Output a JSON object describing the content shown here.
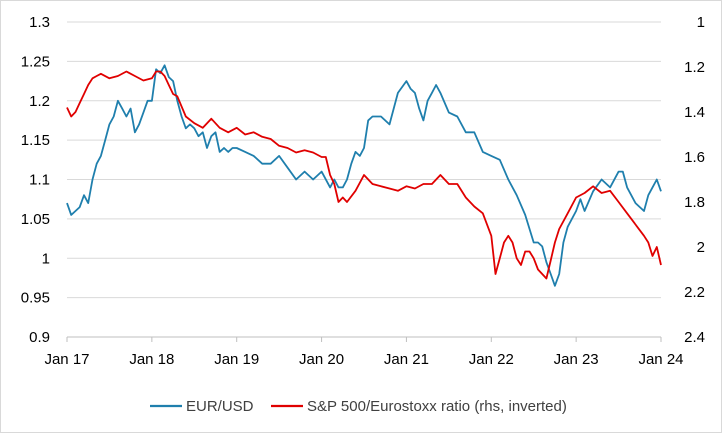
{
  "chart_data": {
    "type": "line",
    "title": "",
    "xlabel": "",
    "ylabel": "",
    "x_ticks": [
      "Jan 17",
      "Jan 18",
      "Jan 19",
      "Jan 20",
      "Jan 21",
      "Jan 22",
      "Jan 23",
      "Jan 24"
    ],
    "y_left": {
      "ylim": [
        0.9,
        1.3
      ],
      "ticks": [
        "1.3",
        "1.25",
        "1.2",
        "1.15",
        "1.1",
        "1.05",
        "1",
        "0.95",
        "0.9"
      ]
    },
    "y_right": {
      "ylim": [
        1,
        2.4
      ],
      "inverted": true,
      "ticks": [
        "1",
        "1.2",
        "1.4",
        "1.6",
        "1.8",
        "2",
        "2.2",
        "2.4"
      ]
    },
    "grid": {
      "horizontal": true,
      "vertical": false,
      "color": "#d9d9d9"
    },
    "legend_position": "bottom",
    "series": [
      {
        "name": "EUR/USD",
        "axis": "left",
        "color": "#1f7fad",
        "x": [
          2017.0,
          2017.05,
          2017.1,
          2017.15,
          2017.2,
          2017.25,
          2017.3,
          2017.35,
          2017.4,
          2017.45,
          2017.5,
          2017.55,
          2017.6,
          2017.65,
          2017.7,
          2017.75,
          2017.8,
          2017.85,
          2017.9,
          2017.95,
          2018.0,
          2018.05,
          2018.1,
          2018.15,
          2018.2,
          2018.25,
          2018.3,
          2018.35,
          2018.4,
          2018.45,
          2018.5,
          2018.55,
          2018.6,
          2018.65,
          2018.7,
          2018.75,
          2018.8,
          2018.85,
          2018.9,
          2018.95,
          2019.0,
          2019.1,
          2019.2,
          2019.3,
          2019.4,
          2019.5,
          2019.6,
          2019.7,
          2019.8,
          2019.9,
          2020.0,
          2020.1,
          2020.15,
          2020.2,
          2020.25,
          2020.3,
          2020.35,
          2020.4,
          2020.45,
          2020.5,
          2020.55,
          2020.6,
          2020.7,
          2020.8,
          2020.9,
          2021.0,
          2021.05,
          2021.1,
          2021.15,
          2021.2,
          2021.25,
          2021.3,
          2021.35,
          2021.4,
          2021.5,
          2021.6,
          2021.7,
          2021.8,
          2021.9,
          2022.0,
          2022.1,
          2022.2,
          2022.3,
          2022.4,
          2022.5,
          2022.55,
          2022.6,
          2022.65,
          2022.7,
          2022.75,
          2022.8,
          2022.85,
          2022.9,
          2023.0,
          2023.05,
          2023.1,
          2023.2,
          2023.3,
          2023.4,
          2023.5,
          2023.55,
          2023.6,
          2023.7,
          2023.8,
          2023.85,
          2023.9,
          2023.95,
          2024.0
        ],
        "values": [
          1.07,
          1.055,
          1.06,
          1.065,
          1.08,
          1.07,
          1.1,
          1.12,
          1.13,
          1.15,
          1.17,
          1.18,
          1.2,
          1.19,
          1.18,
          1.19,
          1.16,
          1.17,
          1.185,
          1.2,
          1.2,
          1.24,
          1.235,
          1.245,
          1.23,
          1.225,
          1.2,
          1.18,
          1.165,
          1.17,
          1.165,
          1.155,
          1.16,
          1.14,
          1.155,
          1.16,
          1.135,
          1.14,
          1.135,
          1.14,
          1.14,
          1.135,
          1.13,
          1.12,
          1.12,
          1.13,
          1.115,
          1.1,
          1.11,
          1.1,
          1.11,
          1.09,
          1.1,
          1.09,
          1.09,
          1.1,
          1.12,
          1.135,
          1.13,
          1.14,
          1.175,
          1.18,
          1.18,
          1.17,
          1.21,
          1.225,
          1.215,
          1.21,
          1.19,
          1.175,
          1.2,
          1.21,
          1.22,
          1.21,
          1.185,
          1.18,
          1.16,
          1.16,
          1.135,
          1.13,
          1.125,
          1.1,
          1.08,
          1.055,
          1.02,
          1.02,
          1.015,
          0.995,
          0.98,
          0.965,
          0.98,
          1.02,
          1.04,
          1.06,
          1.075,
          1.06,
          1.085,
          1.1,
          1.09,
          1.11,
          1.11,
          1.09,
          1.07,
          1.06,
          1.08,
          1.09,
          1.1,
          1.085
        ]
      },
      {
        "name": "S&P 500/Eurostoxx ratio (rhs, inverted)",
        "axis": "right",
        "color": "#e00000",
        "x": [
          2017.0,
          2017.05,
          2017.1,
          2017.15,
          2017.2,
          2017.25,
          2017.3,
          2017.35,
          2017.4,
          2017.5,
          2017.6,
          2017.7,
          2017.8,
          2017.9,
          2018.0,
          2018.05,
          2018.1,
          2018.15,
          2018.2,
          2018.25,
          2018.3,
          2018.4,
          2018.5,
          2018.6,
          2018.7,
          2018.8,
          2018.9,
          2019.0,
          2019.1,
          2019.2,
          2019.3,
          2019.4,
          2019.5,
          2019.6,
          2019.7,
          2019.8,
          2019.9,
          2020.0,
          2020.05,
          2020.1,
          2020.15,
          2020.2,
          2020.25,
          2020.3,
          2020.4,
          2020.5,
          2020.6,
          2020.7,
          2020.8,
          2020.9,
          2021.0,
          2021.1,
          2021.2,
          2021.3,
          2021.4,
          2021.5,
          2021.6,
          2021.7,
          2021.8,
          2021.9,
          2022.0,
          2022.05,
          2022.1,
          2022.15,
          2022.2,
          2022.25,
          2022.3,
          2022.35,
          2022.4,
          2022.45,
          2022.5,
          2022.55,
          2022.6,
          2022.65,
          2022.7,
          2022.75,
          2022.8,
          2022.9,
          2023.0,
          2023.1,
          2023.2,
          2023.3,
          2023.4,
          2023.5,
          2023.6,
          2023.7,
          2023.8,
          2023.85,
          2023.9,
          2023.95,
          2024.0
        ],
        "values": [
          1.38,
          1.42,
          1.4,
          1.36,
          1.32,
          1.28,
          1.25,
          1.24,
          1.23,
          1.25,
          1.24,
          1.22,
          1.24,
          1.26,
          1.25,
          1.22,
          1.22,
          1.24,
          1.28,
          1.32,
          1.33,
          1.42,
          1.45,
          1.47,
          1.43,
          1.47,
          1.49,
          1.47,
          1.5,
          1.49,
          1.51,
          1.52,
          1.55,
          1.56,
          1.58,
          1.57,
          1.58,
          1.6,
          1.6,
          1.68,
          1.72,
          1.8,
          1.78,
          1.8,
          1.75,
          1.68,
          1.72,
          1.73,
          1.74,
          1.75,
          1.73,
          1.74,
          1.72,
          1.72,
          1.68,
          1.72,
          1.72,
          1.78,
          1.82,
          1.85,
          1.95,
          2.12,
          2.05,
          1.98,
          1.95,
          1.98,
          2.05,
          2.08,
          2.02,
          2.02,
          2.05,
          2.1,
          2.12,
          2.14,
          2.06,
          1.98,
          1.92,
          1.85,
          1.78,
          1.76,
          1.73,
          1.76,
          1.75,
          1.8,
          1.85,
          1.9,
          1.95,
          1.98,
          2.04,
          2.0,
          2.08
        ]
      }
    ]
  }
}
